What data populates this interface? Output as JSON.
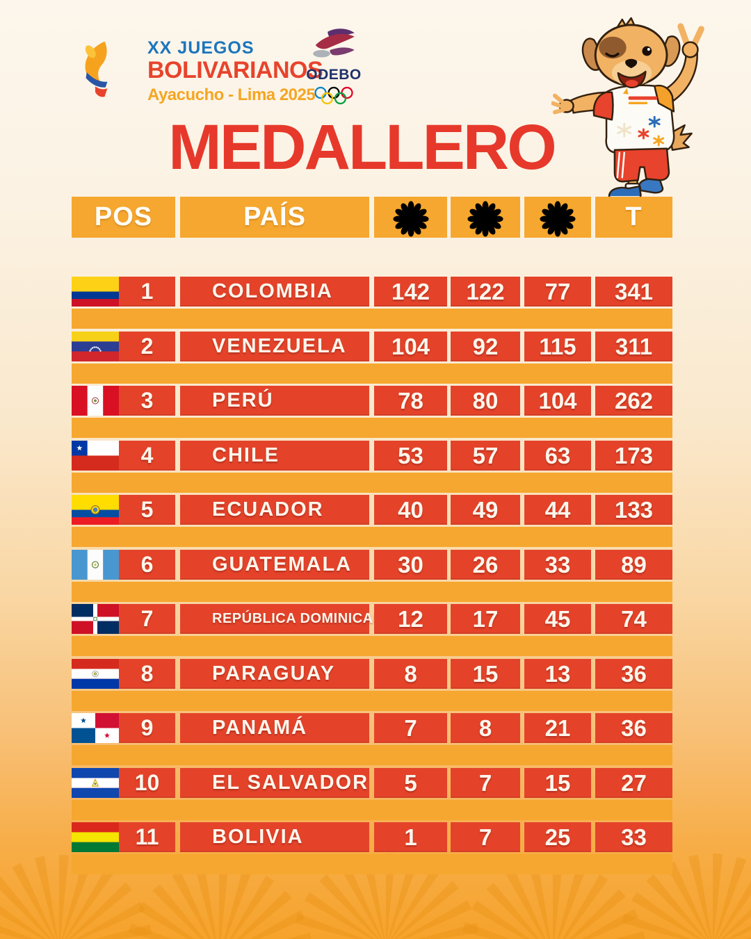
{
  "title": "MEDALLERO",
  "logo": {
    "line1": "XX JUEGOS",
    "line2": "BOLIVARIANOS",
    "line3": "Ayacucho - Lima 2025",
    "odebo": "ODEBO"
  },
  "table": {
    "headers": {
      "pos": "POS",
      "country": "PAÍS",
      "total": "T",
      "medal_icons": [
        "gold",
        "silver",
        "bronze"
      ]
    },
    "rows": [
      {
        "pos": "1",
        "country": "COLOMBIA",
        "flag": "colombia",
        "gold": "142",
        "silver": "122",
        "bronze": "77",
        "total": "341"
      },
      {
        "pos": "2",
        "country": "VENEZUELA",
        "flag": "venezuela",
        "gold": "104",
        "silver": "92",
        "bronze": "115",
        "total": "311"
      },
      {
        "pos": "3",
        "country": "PERÚ",
        "flag": "peru",
        "gold": "78",
        "silver": "80",
        "bronze": "104",
        "total": "262"
      },
      {
        "pos": "4",
        "country": "CHILE",
        "flag": "chile",
        "gold": "53",
        "silver": "57",
        "bronze": "63",
        "total": "173"
      },
      {
        "pos": "5",
        "country": "ECUADOR",
        "flag": "ecuador",
        "gold": "40",
        "silver": "49",
        "bronze": "44",
        "total": "133"
      },
      {
        "pos": "6",
        "country": "GUATEMALA",
        "flag": "guatemala",
        "gold": "30",
        "silver": "26",
        "bronze": "33",
        "total": "89"
      },
      {
        "pos": "7",
        "country": "REPÚBLICA DOMINICANA",
        "flag": "dominicana",
        "gold": "12",
        "silver": "17",
        "bronze": "45",
        "total": "74"
      },
      {
        "pos": "8",
        "country": "PARAGUAY",
        "flag": "paraguay",
        "gold": "8",
        "silver": "15",
        "bronze": "13",
        "total": "36"
      },
      {
        "pos": "9",
        "country": "PANAMÁ",
        "flag": "panama",
        "gold": "7",
        "silver": "8",
        "bronze": "21",
        "total": "36"
      },
      {
        "pos": "10",
        "country": "EL SALVADOR",
        "flag": "el_salvador",
        "gold": "5",
        "silver": "7",
        "bronze": "15",
        "total": "27"
      },
      {
        "pos": "11",
        "country": "BOLIVIA",
        "flag": "bolivia",
        "gold": "1",
        "silver": "7",
        "bronze": "25",
        "total": "33"
      }
    ]
  },
  "chart_data": {
    "type": "table",
    "title": "MEDALLERO",
    "columns": [
      "POS",
      "PAÍS",
      "gold-medal",
      "silver-medal",
      "bronze-medal",
      "T"
    ],
    "rows": [
      [
        1,
        "COLOMBIA",
        142,
        122,
        77,
        341
      ],
      [
        2,
        "VENEZUELA",
        104,
        92,
        115,
        311
      ],
      [
        3,
        "PERÚ",
        78,
        80,
        104,
        262
      ],
      [
        4,
        "CHILE",
        53,
        57,
        63,
        173
      ],
      [
        5,
        "ECUADOR",
        40,
        49,
        44,
        133
      ],
      [
        6,
        "GUATEMALA",
        30,
        26,
        33,
        89
      ],
      [
        7,
        "REPÚBLICA DOMINICANA",
        12,
        17,
        45,
        74
      ],
      [
        8,
        "PARAGUAY",
        8,
        15,
        13,
        36
      ],
      [
        9,
        "PANAMÁ",
        7,
        8,
        21,
        36
      ],
      [
        10,
        "EL SALVADOR",
        5,
        7,
        15,
        27
      ],
      [
        11,
        "BOLIVIA",
        1,
        7,
        25,
        33
      ]
    ]
  },
  "colors": {
    "row_red": "#E4432A",
    "bar_orange": "#F6A72F",
    "header_orange": "#F6A72F",
    "title_red": "#E6392B",
    "games_blue": "#1C75BC",
    "games_red": "#E8432C",
    "games_amber": "#F5A623",
    "odebo_navy": "#20316B",
    "gold": "#EDBE45",
    "silver": "#BFBFC4",
    "bronze": "#DD8E2E"
  }
}
